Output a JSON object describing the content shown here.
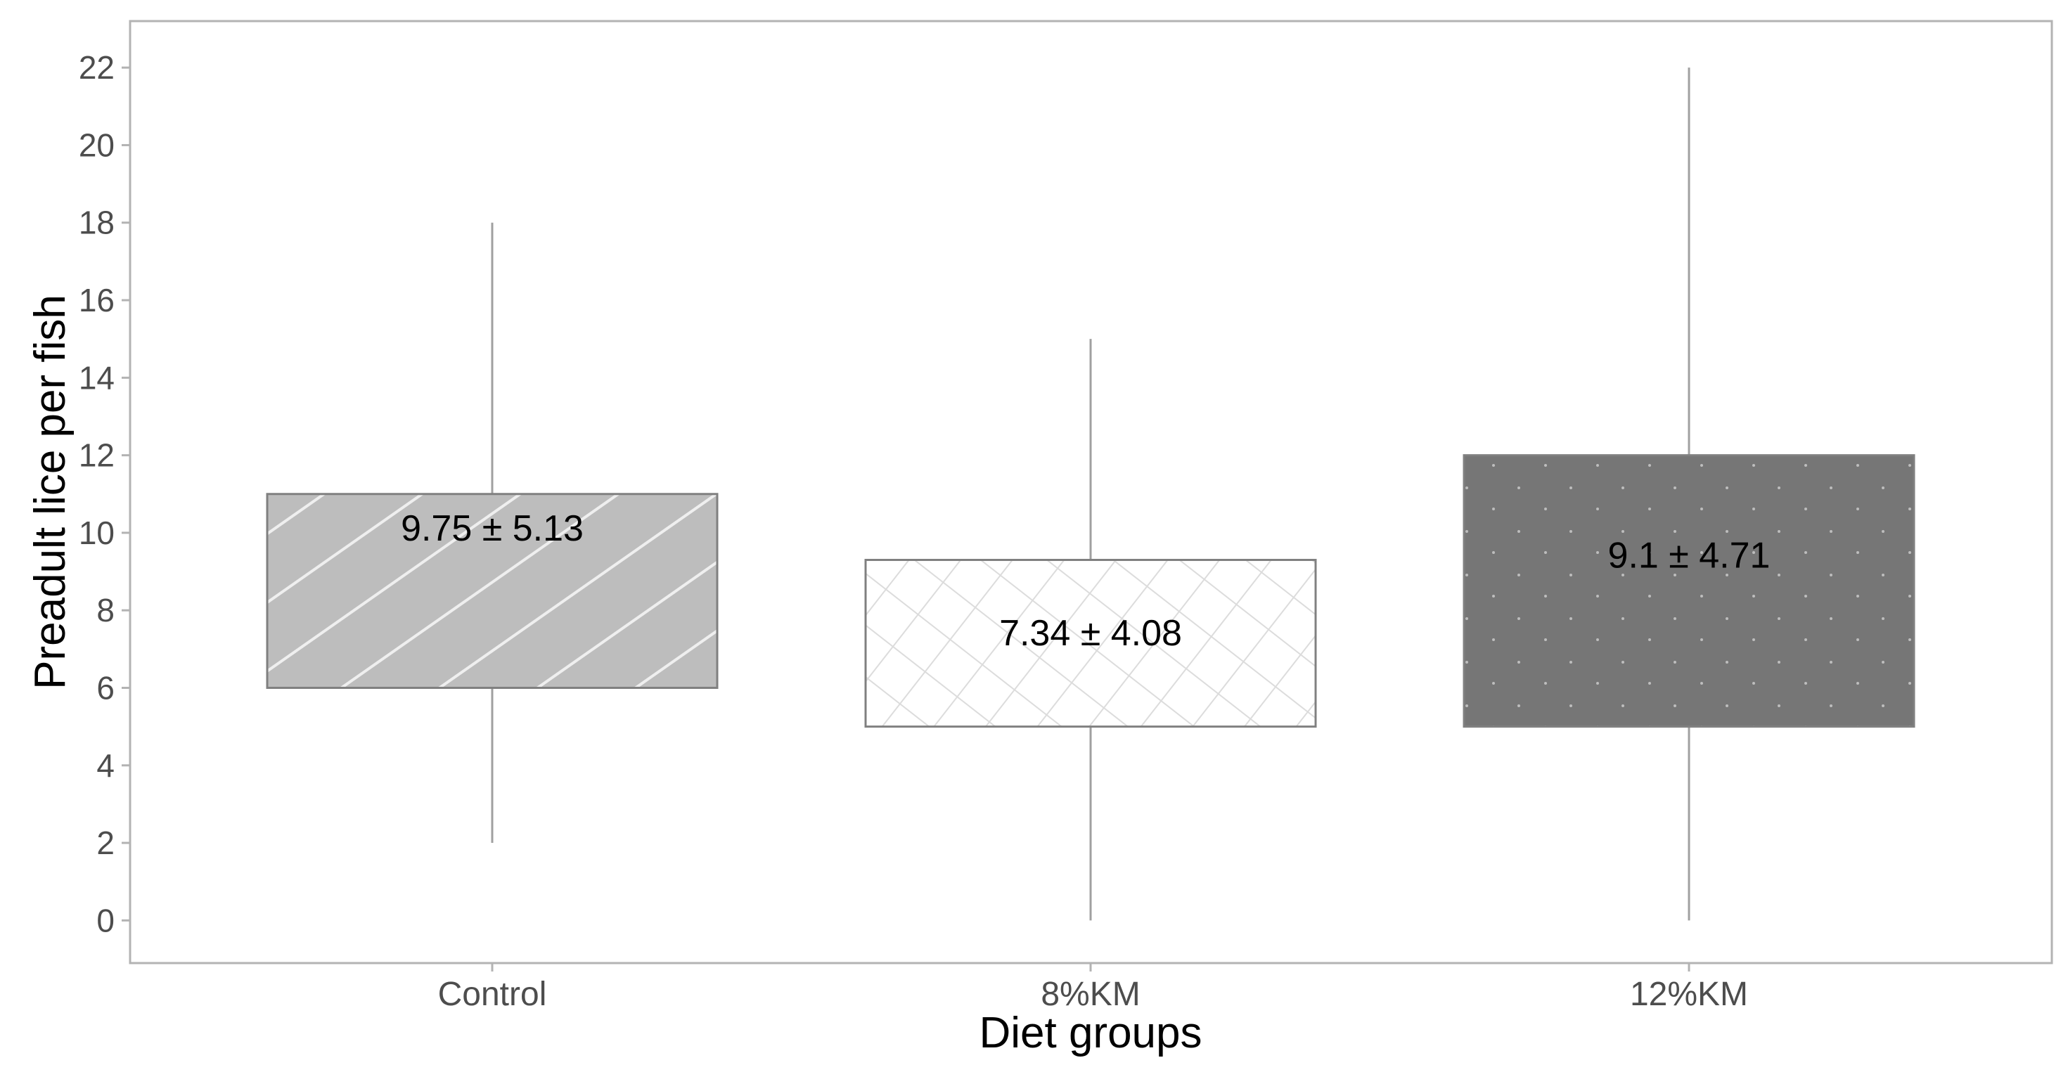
{
  "chart_data": {
    "type": "boxplot",
    "title": "",
    "xlabel": "Diet groups",
    "ylabel": "Preadult lice per fish",
    "ylim": [
      -1.1,
      23.2
    ],
    "y_ticks": [
      0,
      2,
      4,
      6,
      8,
      10,
      12,
      14,
      16,
      18,
      20,
      22
    ],
    "grid": false,
    "legend": "none",
    "categories": [
      "Control",
      "8%KM",
      "12%KM"
    ],
    "boxes": [
      {
        "category": "Control",
        "min": 2,
        "q1": 6,
        "q3": 11,
        "max": 18,
        "label": "9.75  ±  5.13",
        "fill": "#bdbdbd",
        "pattern": "diagonal-stripes"
      },
      {
        "category": "8%KM",
        "min": 0,
        "q1": 5,
        "q3": 9.3,
        "max": 15,
        "label": "7.34  ±  4.08",
        "fill": "#ffffff",
        "pattern": "crosshatch"
      },
      {
        "category": "12%KM",
        "min": 0,
        "q1": 5,
        "q3": 12,
        "max": 22,
        "label": "9.1  ±  4.71",
        "fill": "#767676",
        "pattern": "dots"
      }
    ],
    "colors": {
      "panel_border": "#b3b3b3",
      "axis_text": "#4d4d4d",
      "whisker": "#a0a0a0",
      "box_border": "#808080"
    }
  }
}
